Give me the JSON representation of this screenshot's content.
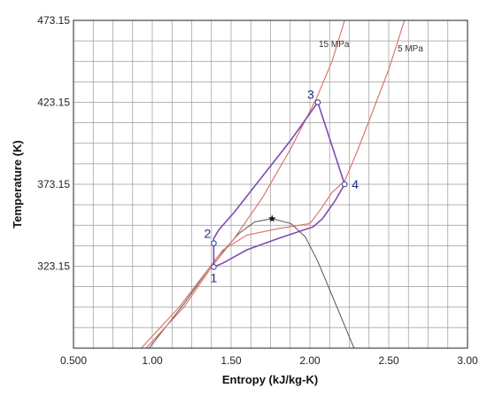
{
  "chart_data": {
    "type": "line",
    "title": "",
    "xlabel": "Entropy (kJ/kg-K)",
    "ylabel": "Temperature (K)",
    "xlim": [
      0.5,
      3.0
    ],
    "ylim": [
      273.15,
      473.15
    ],
    "x_ticks": [
      "0.500",
      "1.00",
      "1.50",
      "2.00",
      "2.50",
      "3.00"
    ],
    "y_ticks": [
      "323.15",
      "373.15",
      "423.15",
      "473.15"
    ],
    "grid": true,
    "colors": {
      "isobar": "#d9776f",
      "cycle": "#7f4ab3",
      "dome": "#555555",
      "state": "#3b4aa6",
      "grid": "#9a9a9a"
    },
    "isobars": [
      {
        "name": "15 MPa",
        "points": [
          [
            0.96,
            273.15
          ],
          [
            1.2,
            298.15
          ],
          [
            1.38,
            323.15
          ],
          [
            1.52,
            340.15
          ],
          [
            1.7,
            365.15
          ],
          [
            1.88,
            395.15
          ],
          [
            2.04,
            425.15
          ],
          [
            2.14,
            448.15
          ],
          [
            2.22,
            473.15
          ]
        ]
      },
      {
        "name": "5 MPa",
        "points": [
          [
            0.93,
            273.15
          ],
          [
            1.17,
            298.15
          ],
          [
            1.33,
            318.15
          ],
          [
            1.45,
            333.15
          ],
          [
            1.6,
            342.15
          ],
          [
            1.8,
            346.15
          ],
          [
            2.0,
            349.15
          ],
          [
            2.07,
            358.15
          ],
          [
            2.14,
            368.15
          ],
          [
            2.22,
            375.15
          ],
          [
            2.3,
            393.15
          ],
          [
            2.4,
            418.15
          ],
          [
            2.5,
            443.15
          ],
          [
            2.6,
            473.15
          ]
        ]
      }
    ],
    "dome": {
      "points": [
        [
          0.98,
          273.15
        ],
        [
          1.2,
          300.15
        ],
        [
          1.4,
          327.15
        ],
        [
          1.55,
          343.15
        ],
        [
          1.65,
          350.15
        ],
        [
          1.76,
          352.15
        ],
        [
          1.88,
          349.15
        ],
        [
          1.97,
          341.15
        ],
        [
          2.05,
          326.15
        ],
        [
          2.15,
          303.15
        ],
        [
          2.28,
          273.15
        ]
      ],
      "critical_point": [
        1.76,
        352.15
      ]
    },
    "cycle": {
      "path": [
        [
          1.39,
          322.65
        ],
        [
          1.39,
          340.15
        ],
        [
          1.42,
          345.15
        ],
        [
          1.52,
          356.15
        ],
        [
          1.7,
          378.15
        ],
        [
          1.88,
          400.15
        ],
        [
          2.05,
          423.15
        ],
        [
          2.22,
          373.15
        ],
        [
          2.16,
          363.15
        ],
        [
          2.08,
          352.15
        ],
        [
          2.02,
          347.15
        ],
        [
          1.8,
          340.15
        ],
        [
          1.6,
          333.15
        ],
        [
          1.45,
          325.15
        ],
        [
          1.39,
          322.65
        ]
      ],
      "states": [
        {
          "label": "1",
          "s": 1.39,
          "T": 322.65
        },
        {
          "label": "2",
          "s": 1.39,
          "T": 337.15
        },
        {
          "label": "3",
          "s": 2.05,
          "T": 423.15
        },
        {
          "label": "4",
          "s": 2.22,
          "T": 373.15
        }
      ]
    }
  }
}
